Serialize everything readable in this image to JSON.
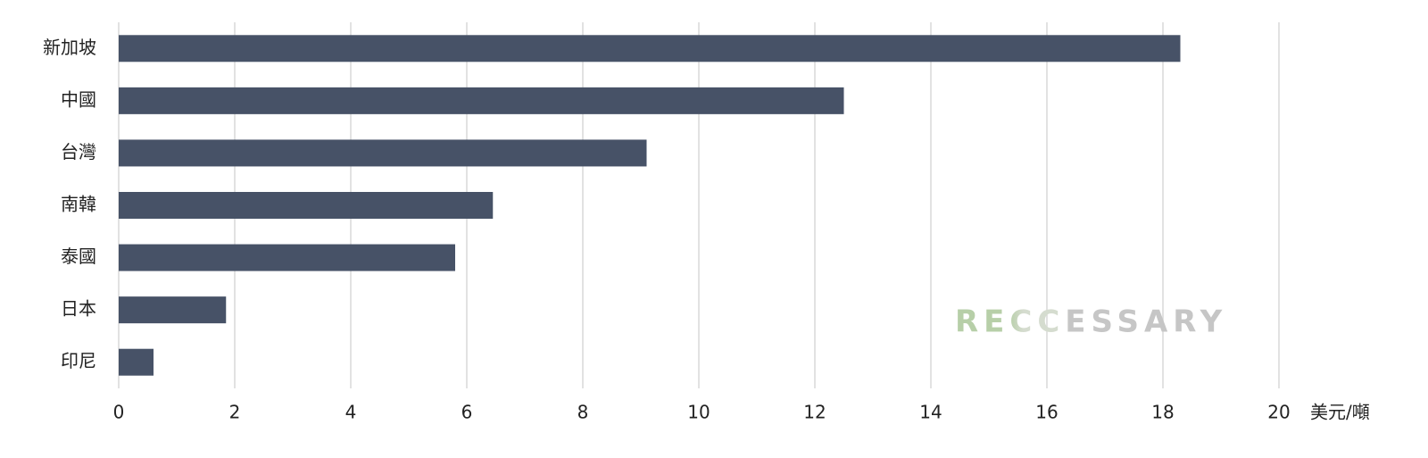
{
  "chart_data": {
    "type": "bar",
    "orientation": "horizontal",
    "categories": [
      "新加坡",
      "中國",
      "台灣",
      "南韓",
      "泰國",
      "日本",
      "印尼"
    ],
    "values": [
      18.3,
      12.5,
      9.1,
      6.45,
      5.8,
      1.85,
      0.6
    ],
    "color": "#475267",
    "xlim": [
      0,
      20
    ],
    "xticks": [
      0,
      2,
      4,
      6,
      8,
      10,
      12,
      14,
      16,
      18,
      20
    ],
    "xlabel": "美元/噸",
    "grid": true,
    "watermark": "RECCESSARY"
  }
}
